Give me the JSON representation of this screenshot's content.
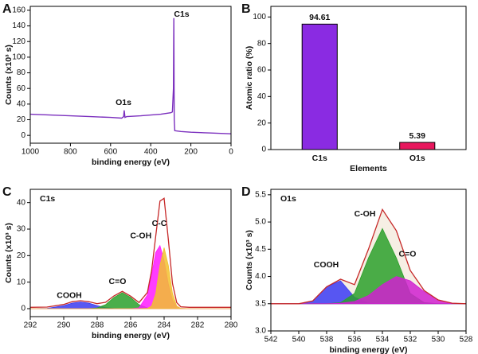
{
  "chart_data": [
    {
      "panel": "A",
      "type": "line",
      "color": "#7b2fbe",
      "x_label": "binding energy (eV)",
      "y_label": "Counts (x10³ s)",
      "annotations": [
        "O1s",
        "C1s"
      ],
      "x": [
        1000,
        900,
        800,
        700,
        600,
        545,
        535,
        532,
        528,
        520,
        450,
        400,
        350,
        300,
        292,
        287,
        285,
        283,
        280,
        250,
        200,
        100,
        0
      ],
      "values": [
        27,
        26,
        25,
        24,
        23,
        22,
        24,
        32,
        23,
        24,
        25,
        26,
        27,
        29,
        30,
        60,
        150,
        20,
        6,
        5,
        4,
        3,
        2
      ],
      "xlim": [
        1000,
        0
      ],
      "xticks": [
        1000,
        800,
        600,
        400,
        200,
        0
      ],
      "ylim": [
        -10,
        165
      ],
      "yticks": [
        0,
        20,
        40,
        60,
        80,
        100,
        120,
        140,
        160
      ]
    },
    {
      "panel": "B",
      "type": "bar",
      "x_label": "Elements",
      "y_label": "Atomic ratio (%)",
      "categories": [
        "C1s",
        "O1s"
      ],
      "values": [
        94.61,
        5.39
      ],
      "colors": [
        "#8a2be2",
        "#e8175d"
      ],
      "ylim": [
        0,
        108
      ],
      "yticks": [
        0,
        20,
        40,
        60,
        80,
        100
      ]
    },
    {
      "panel": "C",
      "type": "area",
      "label": "C1s",
      "x_label": "binding energy (eV)",
      "y_label": "Counts (x10³ s)",
      "x": [
        292,
        291,
        290,
        289.5,
        289,
        288.5,
        288,
        287.5,
        287,
        286.5,
        286,
        285.5,
        285,
        284.75,
        284.5,
        284.25,
        284,
        283.75,
        283.5,
        283.25,
        283,
        282.5,
        282,
        281,
        280
      ],
      "series": [
        {
          "name": "COOH",
          "color": "#3b3bf0",
          "values": [
            0,
            0.1,
            1.1,
            2.1,
            2.5,
            2.1,
            1.1,
            0.4,
            0.1,
            0,
            0,
            0,
            0,
            0,
            0,
            0,
            0,
            0,
            0,
            0,
            0,
            0,
            0,
            0,
            0
          ]
        },
        {
          "name": "C=O",
          "color": "#2ca02c",
          "values": [
            0,
            0,
            0,
            0,
            0,
            0,
            0.3,
            1.5,
            4.2,
            6,
            4.2,
            1.5,
            0.3,
            0.1,
            0,
            0,
            0,
            0,
            0,
            0,
            0,
            0,
            0,
            0,
            0
          ]
        },
        {
          "name": "C-OH",
          "color": "#ff1aff",
          "values": [
            0,
            0,
            0,
            0,
            0,
            0,
            0,
            0,
            0,
            0,
            0,
            0.3,
            5.2,
            12.7,
            21.2,
            23.8,
            18.1,
            9.3,
            3.3,
            0.8,
            0.1,
            0,
            0,
            0,
            0
          ]
        },
        {
          "name": "C-C",
          "color": "#f2c12e",
          "values": [
            0,
            0,
            0,
            0,
            0,
            0,
            0,
            0,
            0,
            0,
            0,
            0,
            0.1,
            1.0,
            5.7,
            16.3,
            23,
            16.3,
            5.7,
            1.0,
            0.1,
            0,
            0,
            0,
            0
          ]
        }
      ],
      "envelope": {
        "color": "#c62828",
        "values": [
          0.5,
          0.6,
          1.6,
          2.6,
          3.0,
          2.6,
          1.9,
          2.4,
          4.8,
          6.5,
          4.7,
          2.3,
          6.1,
          14.3,
          27.4,
          40.6,
          41.6,
          26.1,
          9.5,
          2.3,
          0.7,
          0.5,
          0.5,
          0.5,
          0.5
        ]
      },
      "xlim": [
        292,
        280
      ],
      "xticks": [
        292,
        290,
        288,
        286,
        284,
        282,
        280
      ],
      "ylim": [
        -3,
        45
      ],
      "yticks": [
        0,
        10,
        20,
        30,
        40
      ]
    },
    {
      "panel": "D",
      "type": "area",
      "label": "O1s",
      "x_label": "binding energy (eV)",
      "y_label": "Counts (x10³ s)",
      "x": [
        542,
        541,
        540,
        539,
        538,
        537,
        536,
        535,
        534,
        533,
        532,
        531,
        530,
        529,
        528
      ],
      "series": [
        {
          "name": "COOH",
          "color": "#3b3bf5",
          "values": [
            3.5,
            3.5,
            3.5,
            3.55,
            3.81,
            3.92,
            3.62,
            3.51,
            3.5,
            3.5,
            3.5,
            3.5,
            3.5,
            3.5,
            3.5
          ]
        },
        {
          "name": "C-OH",
          "color": "#2ca02c",
          "values": [
            3.5,
            3.5,
            3.5,
            3.5,
            3.5,
            3.52,
            3.69,
            4.34,
            4.88,
            4.34,
            3.69,
            3.52,
            3.5,
            3.5,
            3.5
          ]
        },
        {
          "name": "C=O",
          "color": "#d020d0",
          "values": [
            3.5,
            3.5,
            3.5,
            3.5,
            3.5,
            3.51,
            3.54,
            3.65,
            3.85,
            4.0,
            3.92,
            3.72,
            3.57,
            3.51,
            3.5
          ]
        }
      ],
      "envelope": {
        "color": "#c62828",
        "fill": "#f6efe4",
        "values": [
          3.5,
          3.5,
          3.5,
          3.55,
          3.81,
          3.95,
          3.85,
          4.5,
          5.23,
          4.84,
          4.11,
          3.74,
          3.57,
          3.51,
          3.5
        ]
      },
      "xlim": [
        542,
        528
      ],
      "xticks": [
        542,
        540,
        538,
        536,
        534,
        532,
        530,
        528
      ],
      "ylim": [
        3.0,
        5.6
      ],
      "yticks": [
        {
          "value": 3,
          "label": "3.0"
        },
        3.5,
        {
          "value": 4,
          "label": "4.0"
        },
        4.5,
        {
          "value": 5,
          "label": "5.0"
        },
        5.5
      ]
    }
  ]
}
